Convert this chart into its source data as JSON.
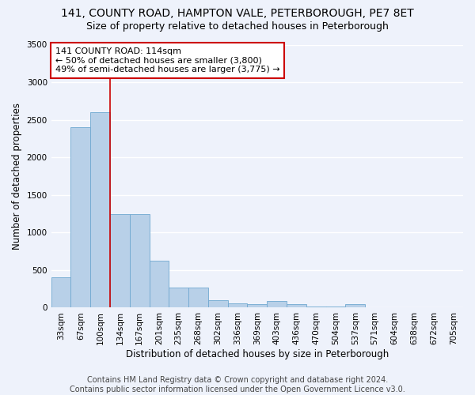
{
  "title": "141, COUNTY ROAD, HAMPTON VALE, PETERBOROUGH, PE7 8ET",
  "subtitle": "Size of property relative to detached houses in Peterborough",
  "xlabel": "Distribution of detached houses by size in Peterborough",
  "ylabel": "Number of detached properties",
  "footer_line1": "Contains HM Land Registry data © Crown copyright and database right 2024.",
  "footer_line2": "Contains public sector information licensed under the Open Government Licence v3.0.",
  "categories": [
    "33sqm",
    "67sqm",
    "100sqm",
    "134sqm",
    "167sqm",
    "201sqm",
    "235sqm",
    "268sqm",
    "302sqm",
    "336sqm",
    "369sqm",
    "403sqm",
    "436sqm",
    "470sqm",
    "504sqm",
    "537sqm",
    "571sqm",
    "604sqm",
    "638sqm",
    "672sqm",
    "705sqm"
  ],
  "values": [
    400,
    2400,
    2600,
    1250,
    1250,
    630,
    270,
    270,
    100,
    60,
    50,
    90,
    50,
    20,
    20,
    50,
    0,
    0,
    0,
    0,
    0
  ],
  "bar_color": "#b8d0e8",
  "bar_edge_color": "#6fa8d0",
  "background_color": "#eef2fb",
  "grid_color": "#ffffff",
  "annotation_text": "141 COUNTY ROAD: 114sqm\n← 50% of detached houses are smaller (3,800)\n49% of semi-detached houses are larger (3,775) →",
  "annotation_box_color": "#ffffff",
  "annotation_border_color": "#cc0000",
  "vline_x": 2.5,
  "vline_color": "#cc0000",
  "ylim": [
    0,
    3500
  ],
  "yticks": [
    0,
    500,
    1000,
    1500,
    2000,
    2500,
    3000,
    3500
  ],
  "title_fontsize": 10,
  "subtitle_fontsize": 9,
  "xlabel_fontsize": 8.5,
  "ylabel_fontsize": 8.5,
  "tick_fontsize": 7.5,
  "annotation_fontsize": 8,
  "footer_fontsize": 7
}
